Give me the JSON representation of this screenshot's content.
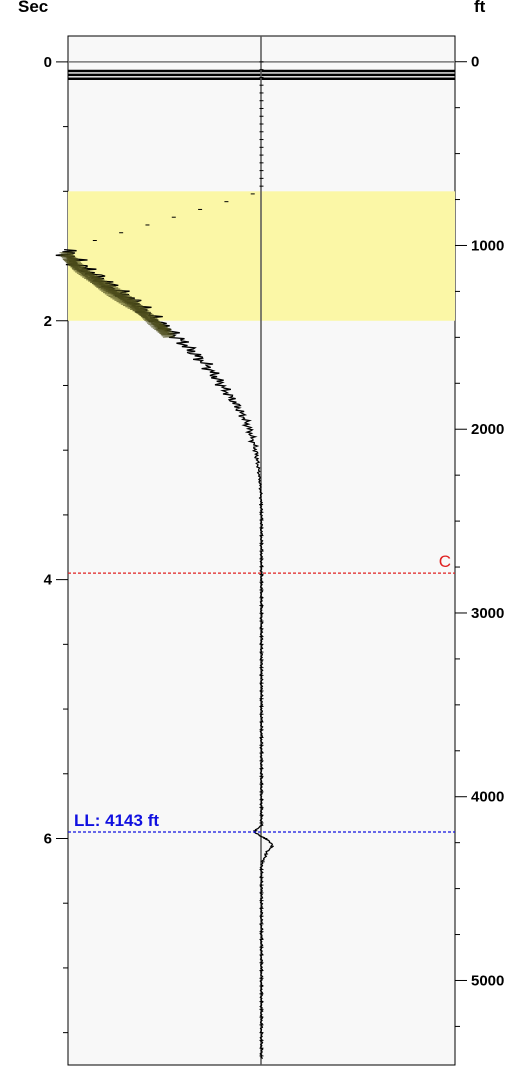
{
  "chart_data": {
    "type": "line",
    "title": "",
    "left_axis": {
      "label": "Sec",
      "range": [
        -0.2,
        7.75
      ],
      "ticks": [
        0,
        2,
        4,
        6
      ],
      "tick_labels": [
        "0",
        "2",
        "4",
        "6"
      ],
      "minor_step": 0.5
    },
    "right_axis": {
      "label": "ft",
      "range": [
        -140,
        5460
      ],
      "ticks": [
        0,
        1000,
        2000,
        3000,
        4000,
        5000
      ],
      "tick_labels": [
        "0",
        "1000",
        "2000",
        "3000",
        "4000",
        "5000"
      ],
      "minor_step": 250
    },
    "x_range": [
      -1,
      1
    ],
    "highlight_band": {
      "from": 1.0,
      "to": 2.0,
      "color": "#fbf7a6"
    },
    "top_lines_sec": [
      0.0,
      0.07,
      0.1,
      0.13
    ],
    "markers": [
      {
        "label": "C",
        "value_sec": 3.95,
        "color": "#e02020",
        "label_side": "right"
      },
      {
        "label": "LL: 4143 ft",
        "value_sec": 5.95,
        "color": "#1010e0",
        "label_side": "left"
      }
    ],
    "series": [
      {
        "values": [
          [
            0.0,
            0.0
          ],
          [
            0.5,
            0.0
          ],
          [
            1.0,
            0.0
          ],
          [
            1.45,
            -1.02
          ],
          [
            1.55,
            -0.96
          ],
          [
            1.65,
            -0.86
          ],
          [
            1.75,
            -0.76
          ],
          [
            1.85,
            -0.66
          ],
          [
            1.95,
            -0.58
          ],
          [
            2.05,
            -0.5
          ],
          [
            2.15,
            -0.42
          ],
          [
            2.25,
            -0.35
          ],
          [
            2.35,
            -0.28
          ],
          [
            2.45,
            -0.23
          ],
          [
            2.55,
            -0.18
          ],
          [
            2.65,
            -0.13
          ],
          [
            2.75,
            -0.09
          ],
          [
            2.85,
            -0.06
          ],
          [
            3.0,
            -0.03
          ],
          [
            3.15,
            -0.015
          ],
          [
            3.3,
            -0.005
          ],
          [
            3.5,
            0.0
          ],
          [
            4.0,
            0.0
          ],
          [
            5.0,
            0.0
          ],
          [
            5.9,
            0.0
          ],
          [
            5.95,
            -0.04
          ],
          [
            6.0,
            0.02
          ],
          [
            6.05,
            0.06
          ],
          [
            6.1,
            0.03
          ],
          [
            6.2,
            0.0
          ],
          [
            7.0,
            0.0
          ],
          [
            7.7,
            0.0
          ]
        ]
      }
    ]
  }
}
